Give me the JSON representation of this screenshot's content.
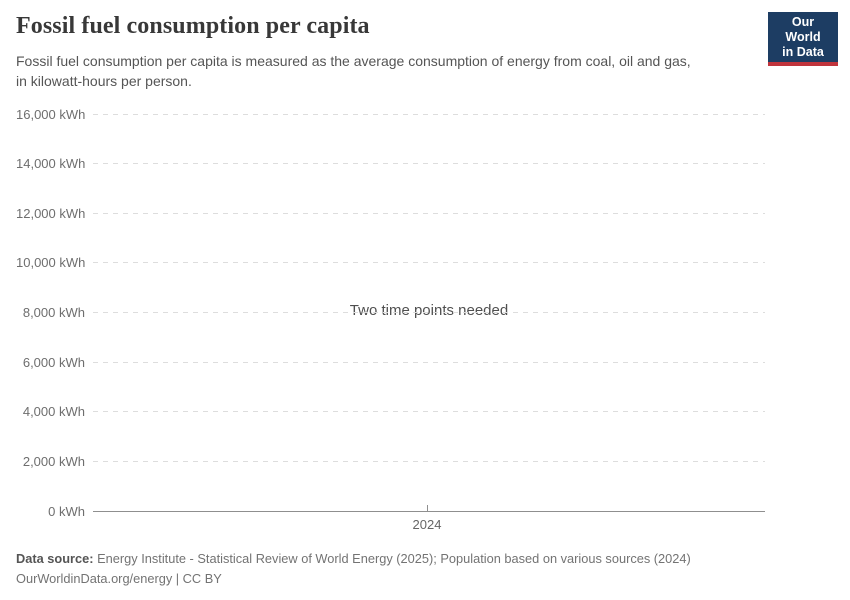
{
  "header": {
    "title": "Fossil fuel consumption per capita",
    "subtitle_lines": [
      "Fossil fuel consumption per capita is measured as the average consumption of energy from coal, oil and gas,",
      "in kilowatt-hours per person."
    ],
    "logo": {
      "line1": "Our World",
      "line2": "in Data",
      "bg_color": "#1d3d63",
      "accent_color": "#c0343c",
      "text_color": "#ffffff"
    }
  },
  "chart_data": {
    "type": "line",
    "title": "Fossil fuel consumption per capita",
    "empty_state_message": "Two time points needed",
    "series": [],
    "x_ticks": [
      "2024"
    ],
    "y_tick_values": [
      16000,
      14000,
      12000,
      10000,
      8000,
      6000,
      4000,
      2000,
      0
    ],
    "y_tick_labels": [
      "16,000 kWh",
      "14,000 kWh",
      "12,000 kWh",
      "10,000 kWh",
      "8,000 kWh",
      "6,000 kWh",
      "4,000 kWh",
      "2,000 kWh",
      "0 kWh"
    ],
    "ylim": [
      0,
      16000
    ],
    "unit": "kWh",
    "xlabel": "",
    "ylabel": "",
    "grid": "horizontal-dashed",
    "legend": "none"
  },
  "footer": {
    "data_source_label": "Data source:",
    "data_source_text": " Energy Institute - Statistical Review of World Energy (2025); Population based on various sources (2024)",
    "license_line": "OurWorldinData.org/energy | CC BY"
  },
  "colors": {
    "title_text": "#383838",
    "subtitle_text": "#555555",
    "axis_label_text": "#6e6e6e",
    "gridline": "#dddddd",
    "axis_line": "#8f8f8f",
    "footer_text": "#737373",
    "background": "#ffffff"
  }
}
